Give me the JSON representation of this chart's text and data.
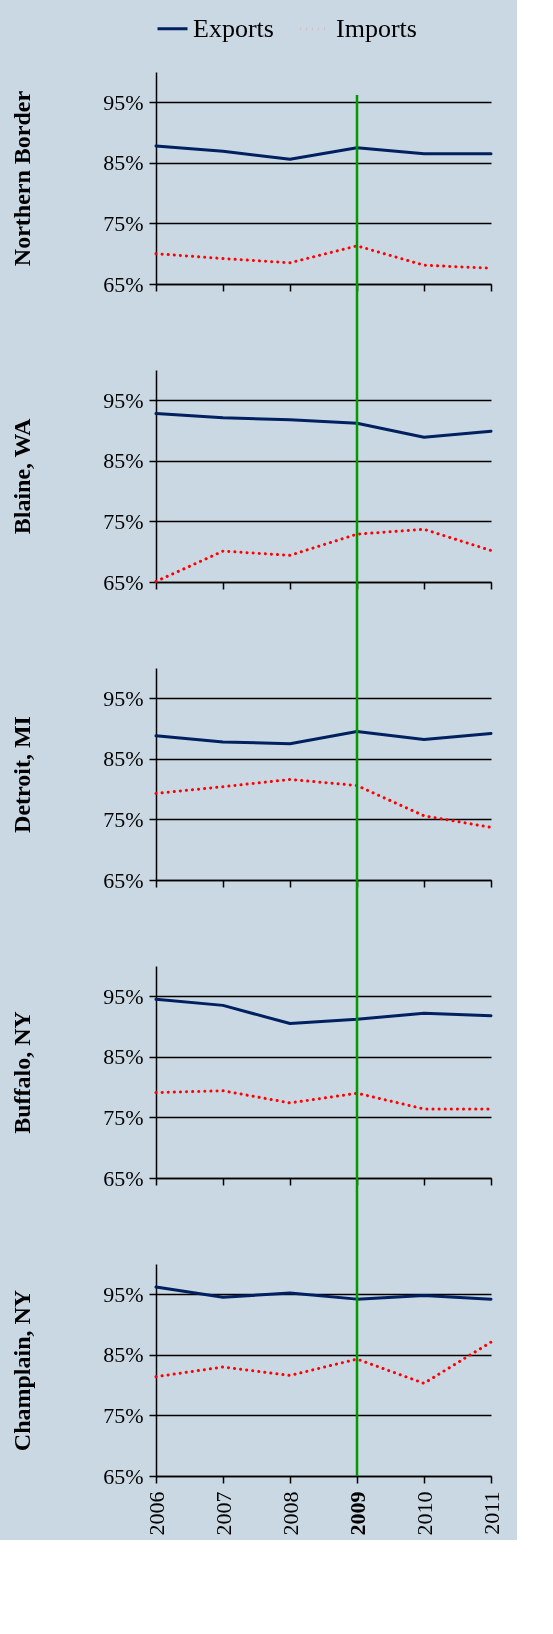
{
  "chart_data": [
    {
      "type": "line",
      "ylabel": "Northern Border",
      "categories": [
        null,
        null,
        null,
        null,
        null,
        null
      ],
      "ylim": [
        65,
        100
      ],
      "yticks": [
        {
          "value": 65,
          "label": "65%"
        },
        {
          "value": 75,
          "label": "75%"
        },
        {
          "value": 85,
          "label": "85%"
        },
        {
          "value": 95,
          "label": "95%"
        }
      ],
      "grid": "y",
      "legend": "top",
      "tick_labels": "y",
      "series": [
        {
          "name": "Exports",
          "color": "#002060",
          "line_style": "solid",
          "values": [
            87.8,
            86.9,
            85.6,
            87.5,
            86.5,
            86.5
          ]
        },
        {
          "name": "Imports",
          "color": "#ff0000",
          "line_style": "dotted",
          "values": [
            70.0,
            69.2,
            68.5,
            71.3,
            68.1,
            67.6
          ]
        }
      ]
    },
    {
      "type": "line",
      "ylabel": "Blaine, WA",
      "categories": [
        null,
        null,
        null,
        null,
        null,
        null
      ],
      "ylim": [
        65,
        100
      ],
      "yticks": [
        {
          "value": 65,
          "label": "65%"
        },
        {
          "value": 75,
          "label": "75%"
        },
        {
          "value": 85,
          "label": "85%"
        },
        {
          "value": 95,
          "label": "95%"
        }
      ],
      "grid": "y",
      "tick_labels": "y",
      "series": [
        {
          "color": "#002060",
          "line_style": "solid",
          "values": [
            92.8,
            92.1,
            91.8,
            91.2,
            88.9,
            89.9
          ]
        },
        {
          "color": "#ff0000",
          "line_style": "dotted",
          "values": [
            65.1,
            70.1,
            69.4,
            72.9,
            73.7,
            70.2
          ]
        }
      ]
    },
    {
      "type": "line",
      "ylabel": "Detroit, MI",
      "categories": [
        null,
        null,
        null,
        null,
        null,
        null
      ],
      "ylim": [
        65,
        100
      ],
      "yticks": [
        {
          "value": 65,
          "label": "65%"
        },
        {
          "value": 75,
          "label": "75%"
        },
        {
          "value": 85,
          "label": "85%"
        },
        {
          "value": 95,
          "label": "95%"
        }
      ],
      "grid": "y",
      "tick_labels": "y",
      "series": [
        {
          "color": "#002060",
          "line_style": "solid",
          "values": [
            88.8,
            87.8,
            87.5,
            89.5,
            88.2,
            89.2
          ]
        },
        {
          "color": "#ff0000",
          "line_style": "dotted",
          "values": [
            79.3,
            80.4,
            81.6,
            80.6,
            75.6,
            73.7
          ]
        }
      ]
    },
    {
      "type": "line",
      "ylabel": "Buffalo, NY",
      "categories": [
        null,
        null,
        null,
        null,
        null,
        null
      ],
      "ylim": [
        65,
        100
      ],
      "yticks": [
        {
          "value": 65,
          "label": "65%"
        },
        {
          "value": 75,
          "label": "75%"
        },
        {
          "value": 85,
          "label": "85%"
        },
        {
          "value": 95,
          "label": "95%"
        }
      ],
      "grid": "y",
      "tick_labels": "y",
      "series": [
        {
          "color": "#002060",
          "line_style": "solid",
          "values": [
            94.5,
            93.5,
            90.5,
            91.2,
            92.2,
            91.8
          ]
        },
        {
          "color": "#ff0000",
          "line_style": "dotted",
          "values": [
            79.1,
            79.4,
            77.4,
            79.0,
            76.4,
            76.4
          ]
        }
      ]
    },
    {
      "type": "line",
      "ylabel": "Champlain, NY",
      "x": [
        2006,
        2007,
        2008,
        2009,
        2010,
        2011
      ],
      "xlim": [
        2006,
        2011
      ],
      "xticks": [
        2006,
        2007,
        2008,
        2009,
        2010,
        2011
      ],
      "ylim": [
        65,
        100
      ],
      "yticks": [
        {
          "value": 65,
          "label": "65%"
        },
        {
          "value": 75,
          "label": "75%"
        },
        {
          "value": 85,
          "label": "85%"
        },
        {
          "value": 95,
          "label": "95%"
        }
      ],
      "grid": "y",
      "series": [
        {
          "color": "#002060",
          "line_style": "solid",
          "values": [
            96.2,
            94.5,
            95.2,
            94.2,
            94.8,
            94.2
          ]
        },
        {
          "color": "#ff0000",
          "line_style": "dotted",
          "values": [
            81.4,
            83.0,
            81.6,
            84.3,
            80.3,
            87.1
          ]
        }
      ],
      "ref_lines": [
        {
          "axis": "x",
          "value": 2009,
          "color": "#009900"
        }
      ]
    }
  ]
}
